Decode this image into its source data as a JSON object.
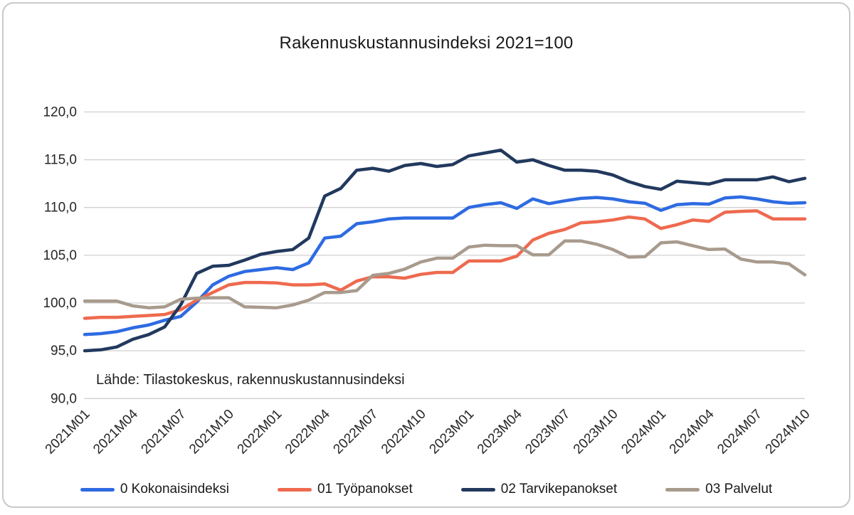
{
  "card": {
    "title": "Rakennuskustannusindeksi 2021=100",
    "source_note": "Lähde: Tilastokeskus, rakennuskustannusindeksi"
  },
  "colors": {
    "background": "#ffffff",
    "card_border": "#c9c9c9",
    "gridline": "#d0d0d0",
    "axis_text": "#262626",
    "blue": "#2e6be2",
    "orange": "#ee6a4f",
    "navy": "#22395e",
    "taupe": "#a89b8d"
  },
  "chart_data": {
    "type": "line",
    "title": "Rakennuskustannusindeksi 2021=100",
    "source_note": "Lähde: Tilastokeskus, rakennuskustannusindeksi",
    "xlabel": "",
    "ylabel": "",
    "ylim": [
      90,
      120
    ],
    "grid": true,
    "legend_position": "bottom",
    "x_tick_every": 3,
    "x": [
      "2021M01",
      "2021M02",
      "2021M03",
      "2021M04",
      "2021M05",
      "2021M06",
      "2021M07",
      "2021M08",
      "2021M09",
      "2021M10",
      "2021M11",
      "2021M12",
      "2022M01",
      "2022M02",
      "2022M03",
      "2022M04",
      "2022M05",
      "2022M06",
      "2022M07",
      "2022M08",
      "2022M09",
      "2022M10",
      "2022M11",
      "2022M12",
      "2023M01",
      "2023M02",
      "2023M03",
      "2023M04",
      "2023M05",
      "2023M06",
      "2023M07",
      "2023M08",
      "2023M09",
      "2023M10",
      "2023M11",
      "2023M12",
      "2024M01",
      "2024M02",
      "2024M03",
      "2024M04",
      "2024M05",
      "2024M06",
      "2024M07",
      "2024M08",
      "2024M09",
      "2024M10"
    ],
    "y_ticks": [
      {
        "value": 90,
        "label": "90,0"
      },
      {
        "value": 95,
        "label": "95,0"
      },
      {
        "value": 100,
        "label": "100,0"
      },
      {
        "value": 105,
        "label": "105,0"
      },
      {
        "value": 110,
        "label": "110,0"
      },
      {
        "value": 115,
        "label": "115,0"
      },
      {
        "value": 120,
        "label": "120,0"
      }
    ],
    "series": [
      {
        "name": "0 Kokonaisindeksi",
        "color": "#2e6be2",
        "values": [
          96.7,
          96.8,
          97.0,
          97.4,
          97.7,
          98.2,
          98.6,
          100.1,
          101.9,
          102.8,
          103.3,
          103.5,
          103.7,
          103.5,
          104.2,
          106.8,
          107.0,
          108.3,
          108.5,
          108.8,
          108.9,
          108.9,
          108.9,
          108.9,
          110.0,
          110.3,
          110.5,
          109.9,
          110.9,
          110.4,
          110.7,
          110.95,
          111.05,
          110.9,
          110.6,
          110.45,
          109.7,
          110.3,
          110.4,
          110.35,
          111.0,
          111.1,
          110.9,
          110.6,
          110.45,
          110.5
        ]
      },
      {
        "name": "01 Työpanokset",
        "color": "#ee6a4f",
        "values": [
          98.4,
          98.5,
          98.5,
          98.6,
          98.7,
          98.8,
          99.3,
          100.3,
          101.1,
          101.9,
          102.15,
          102.15,
          102.1,
          101.9,
          101.9,
          102.0,
          101.35,
          102.3,
          102.75,
          102.75,
          102.6,
          103.0,
          103.2,
          103.2,
          104.4,
          104.4,
          104.4,
          104.9,
          106.6,
          107.3,
          107.7,
          108.4,
          108.5,
          108.7,
          109.0,
          108.8,
          107.8,
          108.2,
          108.7,
          108.55,
          109.5,
          109.6,
          109.65,
          108.8,
          108.8,
          108.8
        ]
      },
      {
        "name": "02 Tarvikepanokset",
        "color": "#22395e",
        "values": [
          95.0,
          95.1,
          95.4,
          96.2,
          96.7,
          97.5,
          99.8,
          103.1,
          103.85,
          103.95,
          104.5,
          105.1,
          105.4,
          105.6,
          106.8,
          111.2,
          112.0,
          113.9,
          114.1,
          113.8,
          114.4,
          114.6,
          114.3,
          114.5,
          115.4,
          115.7,
          116.0,
          114.75,
          115.0,
          114.4,
          113.9,
          113.9,
          113.8,
          113.4,
          112.7,
          112.2,
          111.9,
          112.75,
          112.6,
          112.45,
          112.9,
          112.9,
          112.9,
          113.2,
          112.7,
          113.05
        ]
      },
      {
        "name": "03 Palvelut",
        "color": "#a89b8d",
        "values": [
          100.2,
          100.2,
          100.2,
          99.7,
          99.5,
          99.6,
          100.4,
          100.5,
          100.55,
          100.55,
          99.6,
          99.55,
          99.5,
          99.8,
          100.3,
          101.1,
          101.1,
          101.3,
          102.9,
          103.1,
          103.55,
          104.3,
          104.7,
          104.7,
          105.85,
          106.05,
          106.0,
          106.0,
          105.05,
          105.05,
          106.5,
          106.5,
          106.15,
          105.6,
          104.8,
          104.85,
          106.3,
          106.4,
          106.0,
          105.6,
          105.65,
          104.6,
          104.3,
          104.3,
          104.1,
          102.95
        ]
      }
    ]
  }
}
